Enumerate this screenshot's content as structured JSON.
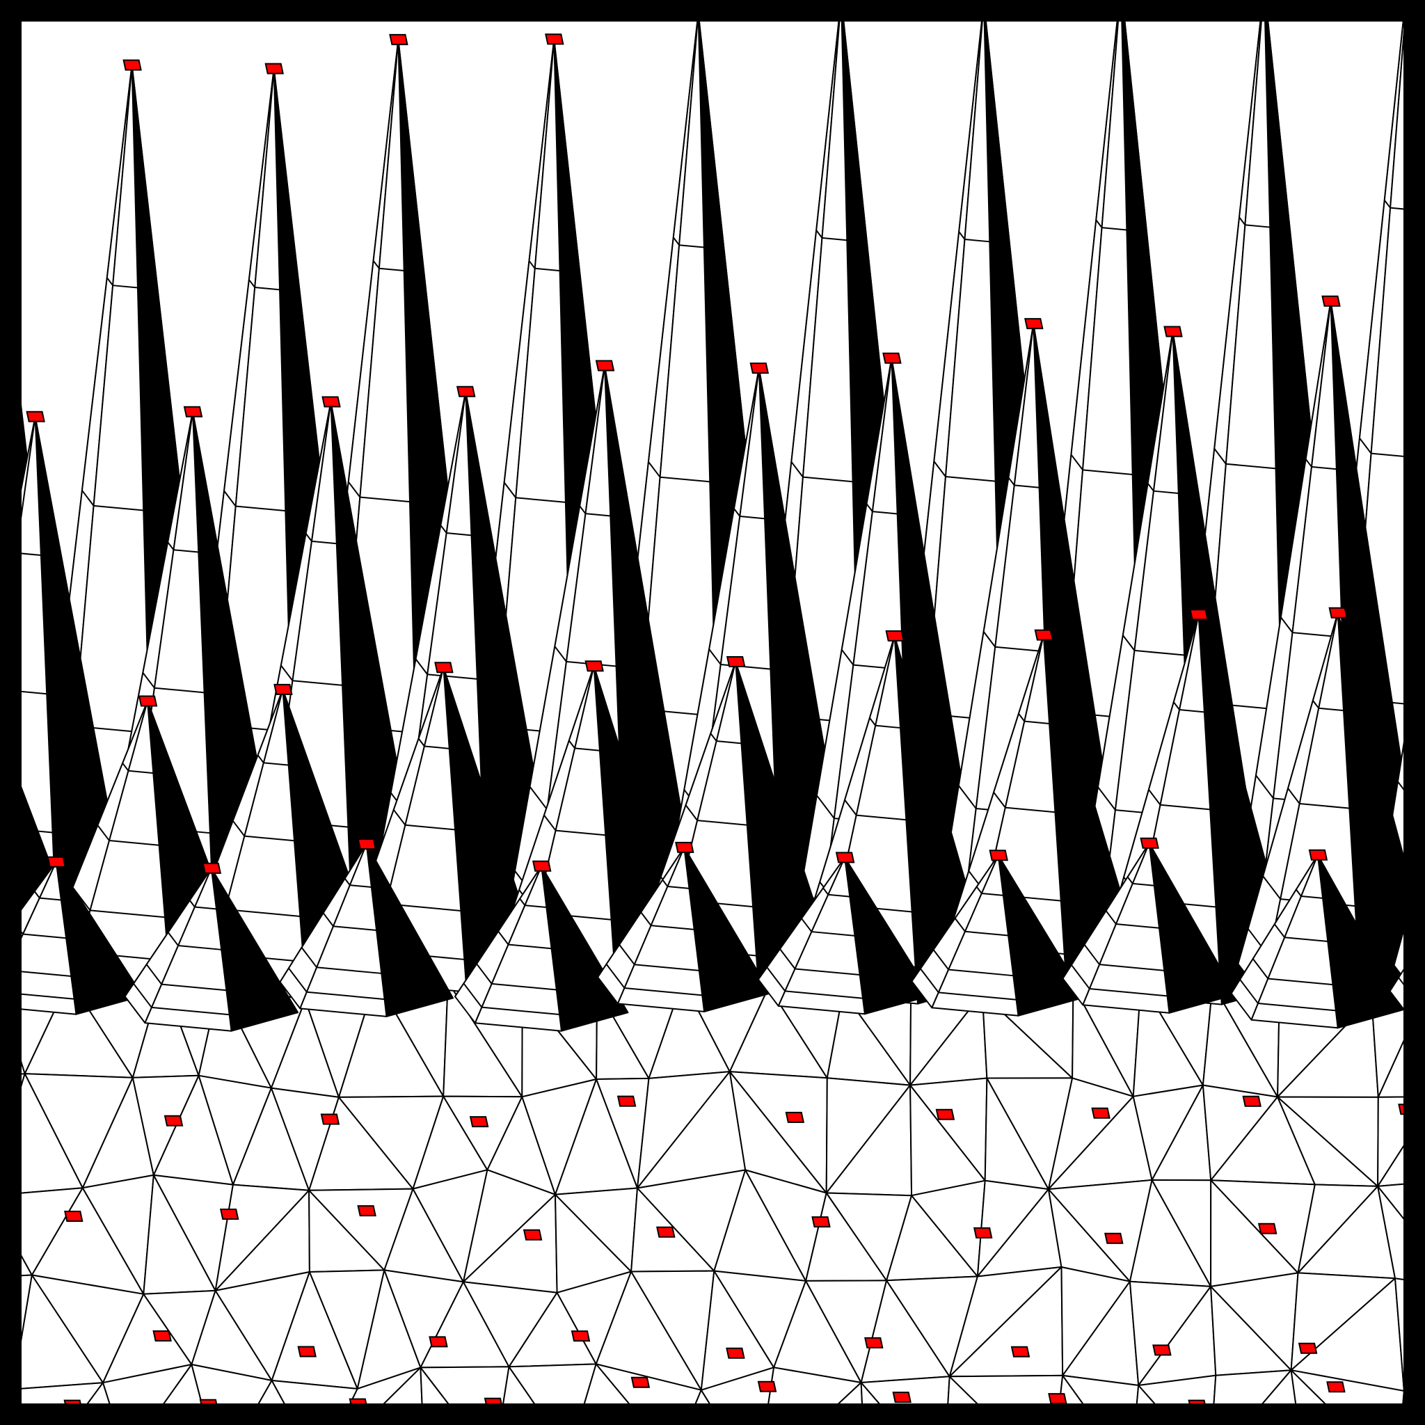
{
  "render": {
    "kind": "3d-mesh-spikes",
    "colors": {
      "frame": "#000000",
      "surface": "#ffffff",
      "edge": "#000000",
      "shadow": "#000000",
      "marker": "#ff0000"
    }
  }
}
